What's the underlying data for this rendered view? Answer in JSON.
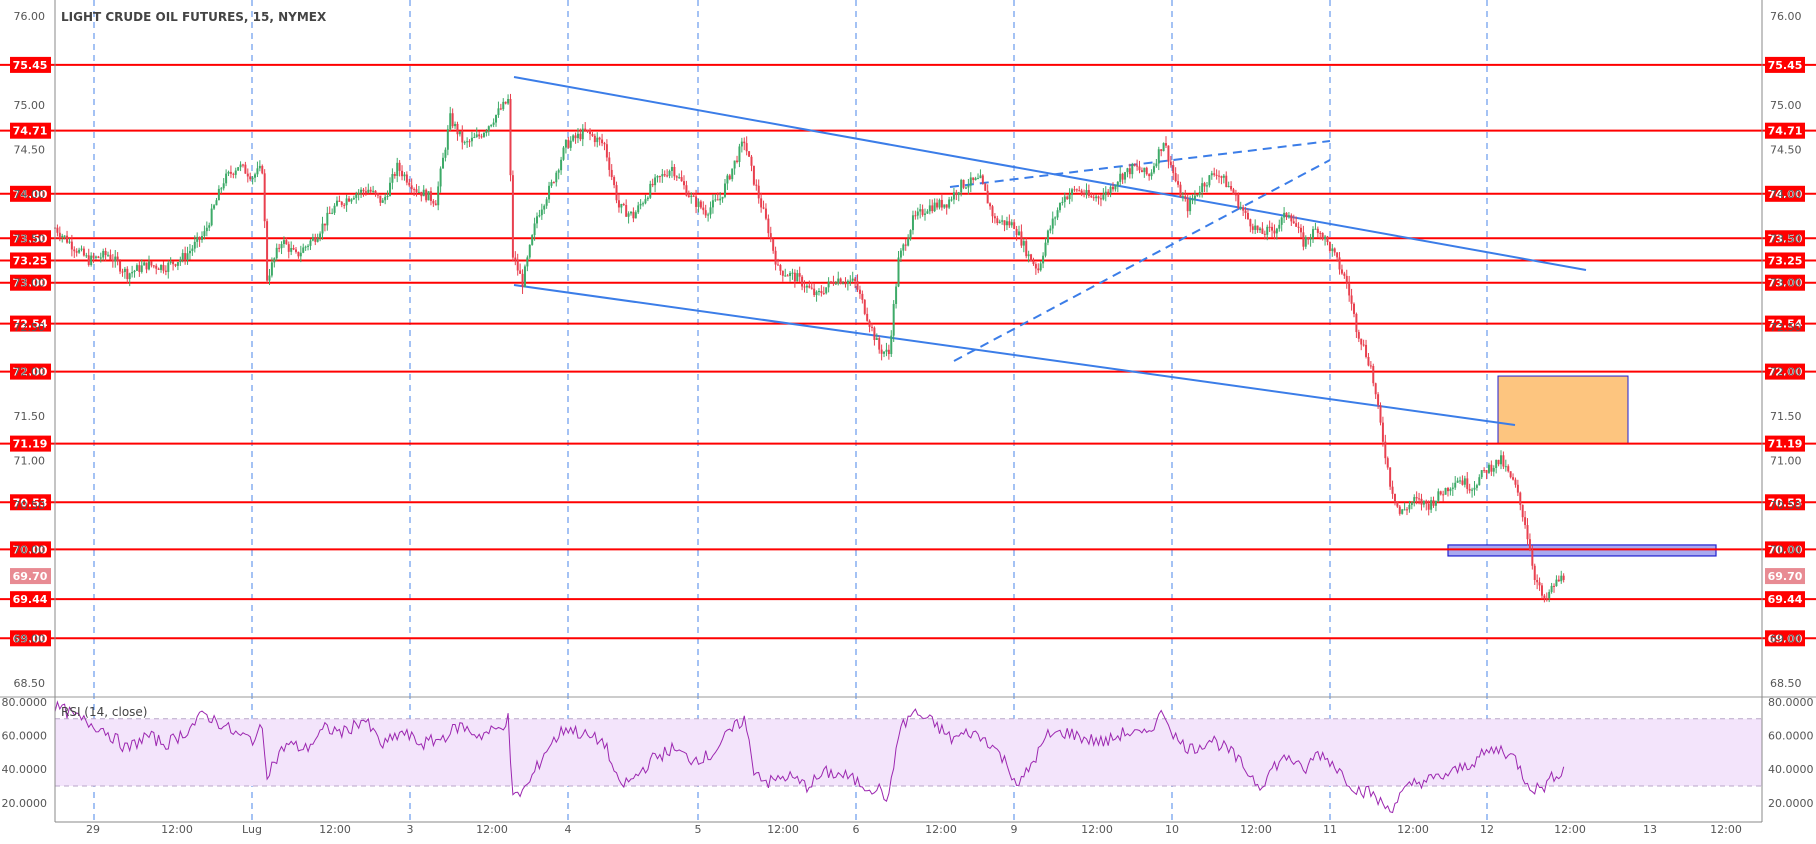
{
  "title": "LIGHT CRUDE OIL FUTURES, 15, NYMEX",
  "colors": {
    "level_line": "#ff0000",
    "level_badge": "#ff0000",
    "up_candle": "#3daa68",
    "down_candle": "#e8404f",
    "trendline": "#3b7de8",
    "session_line": "#4a86e8",
    "supply_zone": "#fdc57f",
    "demand_zone": "#a9aaf0",
    "zone_border": "#1f1fd0",
    "rsi_line": "#9c27b0",
    "rsi_band": "#f3e4fb"
  },
  "chart_data": [
    {
      "type": "candlestick",
      "title": "LIGHT CRUDE OIL FUTURES, 15, NYMEX",
      "ylim": [
        68.5,
        76.0
      ],
      "y_ticks": [
        "76.00",
        "75.00",
        "74.50",
        "74.00",
        "73.50",
        "73.00",
        "72.50",
        "72.00",
        "71.50",
        "71.00",
        "70.50",
        "70.00",
        "69.00",
        "68.50"
      ],
      "x_ticks": [
        "29",
        "12:00",
        "Lug",
        "12:00",
        "3",
        "12:00",
        "4",
        "5",
        "12:00",
        "6",
        "12:00",
        "9",
        "12:00",
        "10",
        "12:00",
        "11",
        "12:00",
        "12",
        "12:00",
        "13",
        "12:00"
      ],
      "level_lines": [
        "75.45",
        "74.71",
        "74.00",
        "73.50",
        "73.25",
        "73.00",
        "72.54",
        "72.00",
        "71.19",
        "70.53",
        "70.00",
        "69.44",
        "69.00"
      ],
      "last_price": "69.70",
      "price_path": [
        [
          0,
          73.62
        ],
        [
          8,
          73.4
        ],
        [
          14,
          73.25
        ],
        [
          22,
          73.32
        ],
        [
          30,
          73.1
        ],
        [
          38,
          73.2
        ],
        [
          46,
          73.18
        ],
        [
          54,
          73.3
        ],
        [
          62,
          73.55
        ],
        [
          70,
          74.15
        ],
        [
          76,
          74.32
        ],
        [
          82,
          74.2
        ],
        [
          86,
          74.28
        ],
        [
          88,
          73.05
        ],
        [
          94,
          73.48
        ],
        [
          100,
          73.3
        ],
        [
          108,
          73.52
        ],
        [
          116,
          73.85
        ],
        [
          124,
          74.0
        ],
        [
          130,
          74.05
        ],
        [
          136,
          73.9
        ],
        [
          142,
          74.3
        ],
        [
          150,
          74.05
        ],
        [
          158,
          73.92
        ],
        [
          164,
          74.85
        ],
        [
          170,
          74.55
        ],
        [
          176,
          74.65
        ],
        [
          180,
          74.78
        ],
        [
          184,
          74.92
        ],
        [
          188,
          75.05
        ],
        [
          190,
          73.3
        ],
        [
          194,
          73.0
        ],
        [
          200,
          73.75
        ],
        [
          206,
          74.1
        ],
        [
          212,
          74.55
        ],
        [
          220,
          74.7
        ],
        [
          228,
          74.55
        ],
        [
          234,
          73.85
        ],
        [
          240,
          73.75
        ],
        [
          248,
          74.1
        ],
        [
          256,
          74.3
        ],
        [
          264,
          73.95
        ],
        [
          270,
          73.8
        ],
        [
          276,
          73.95
        ],
        [
          282,
          74.35
        ],
        [
          286,
          74.6
        ],
        [
          290,
          74.15
        ],
        [
          296,
          73.6
        ],
        [
          300,
          73.15
        ],
        [
          308,
          73.05
        ],
        [
          316,
          72.85
        ],
        [
          324,
          73.05
        ],
        [
          332,
          73.0
        ],
        [
          338,
          72.55
        ],
        [
          342,
          72.25
        ],
        [
          346,
          72.2
        ],
        [
          350,
          73.25
        ],
        [
          356,
          73.7
        ],
        [
          362,
          73.85
        ],
        [
          370,
          73.9
        ],
        [
          376,
          74.1
        ],
        [
          384,
          74.15
        ],
        [
          390,
          73.7
        ],
        [
          398,
          73.65
        ],
        [
          404,
          73.3
        ],
        [
          408,
          73.15
        ],
        [
          412,
          73.55
        ],
        [
          418,
          73.95
        ],
        [
          424,
          74.05
        ],
        [
          430,
          73.95
        ],
        [
          436,
          74.0
        ],
        [
          442,
          74.2
        ],
        [
          448,
          74.3
        ],
        [
          454,
          74.2
        ],
        [
          460,
          74.6
        ],
        [
          466,
          74.05
        ],
        [
          470,
          73.85
        ],
        [
          476,
          74.1
        ],
        [
          482,
          74.25
        ],
        [
          488,
          74.05
        ],
        [
          494,
          73.75
        ],
        [
          500,
          73.55
        ],
        [
          506,
          73.6
        ],
        [
          512,
          73.8
        ],
        [
          518,
          73.45
        ],
        [
          524,
          73.62
        ],
        [
          530,
          73.35
        ],
        [
          536,
          73.0
        ],
        [
          540,
          72.5
        ],
        [
          546,
          72.05
        ],
        [
          550,
          71.4
        ],
        [
          554,
          70.75
        ],
        [
          558,
          70.4
        ],
        [
          564,
          70.55
        ],
        [
          570,
          70.5
        ],
        [
          576,
          70.65
        ],
        [
          582,
          70.8
        ],
        [
          588,
          70.7
        ],
        [
          594,
          70.9
        ],
        [
          600,
          71.0
        ],
        [
          606,
          70.7
        ],
        [
          610,
          70.3
        ],
        [
          614,
          69.7
        ],
        [
          618,
          69.4
        ],
        [
          622,
          69.6
        ],
        [
          626,
          69.7
        ]
      ],
      "trendlines": [
        {
          "from": [
            "02 19:00",
            75.3
          ],
          "to": [
            "11 21:00",
            73.2
          ],
          "style": "solid"
        },
        {
          "from": [
            "02 19:00",
            73.0
          ],
          "to": [
            "12 03:00",
            71.4
          ],
          "style": "solid"
        },
        {
          "from": [
            "09 00:00",
            74.1
          ],
          "to": [
            "11 00:00",
            74.6
          ],
          "style": "dashed"
        },
        {
          "from": [
            "09 00:00",
            72.15
          ],
          "to": [
            "11 00:00",
            74.45
          ],
          "style": "dashed"
        }
      ],
      "zones": [
        {
          "name": "supply",
          "y_top": 71.95,
          "y_bottom": 71.19
        },
        {
          "name": "demand",
          "y_top": 70.05,
          "y_bottom": 69.92
        }
      ]
    },
    {
      "type": "line",
      "title": "RSI (14, close)",
      "ylim": [
        10,
        80
      ],
      "band": [
        30,
        70
      ],
      "y_ticks": [
        "80.0000",
        "60.0000",
        "40.0000",
        "20.0000"
      ],
      "rsi_path": [
        [
          0,
          78
        ],
        [
          10,
          70
        ],
        [
          20,
          64
        ],
        [
          30,
          52
        ],
        [
          38,
          60
        ],
        [
          46,
          55
        ],
        [
          54,
          62
        ],
        [
          62,
          73
        ],
        [
          70,
          66
        ],
        [
          76,
          60
        ],
        [
          82,
          58
        ],
        [
          86,
          64
        ],
        [
          88,
          38
        ],
        [
          96,
          55
        ],
        [
          104,
          52
        ],
        [
          112,
          64
        ],
        [
          120,
          62
        ],
        [
          128,
          70
        ],
        [
          136,
          54
        ],
        [
          144,
          62
        ],
        [
          152,
          55
        ],
        [
          160,
          58
        ],
        [
          168,
          66
        ],
        [
          176,
          60
        ],
        [
          184,
          64
        ],
        [
          188,
          70
        ],
        [
          190,
          22
        ],
        [
          196,
          30
        ],
        [
          204,
          52
        ],
        [
          212,
          65
        ],
        [
          220,
          60
        ],
        [
          228,
          56
        ],
        [
          234,
          30
        ],
        [
          240,
          34
        ],
        [
          248,
          46
        ],
        [
          256,
          52
        ],
        [
          264,
          46
        ],
        [
          272,
          48
        ],
        [
          280,
          62
        ],
        [
          286,
          70
        ],
        [
          290,
          40
        ],
        [
          296,
          32
        ],
        [
          304,
          36
        ],
        [
          312,
          30
        ],
        [
          320,
          38
        ],
        [
          328,
          36
        ],
        [
          336,
          30
        ],
        [
          342,
          28
        ],
        [
          346,
          22
        ],
        [
          350,
          62
        ],
        [
          356,
          74
        ],
        [
          364,
          68
        ],
        [
          372,
          58
        ],
        [
          380,
          62
        ],
        [
          388,
          56
        ],
        [
          394,
          45
        ],
        [
          400,
          30
        ],
        [
          406,
          45
        ],
        [
          412,
          60
        ],
        [
          420,
          62
        ],
        [
          428,
          58
        ],
        [
          436,
          56
        ],
        [
          444,
          62
        ],
        [
          452,
          60
        ],
        [
          460,
          74
        ],
        [
          466,
          56
        ],
        [
          472,
          52
        ],
        [
          480,
          58
        ],
        [
          488,
          50
        ],
        [
          494,
          40
        ],
        [
          500,
          30
        ],
        [
          506,
          42
        ],
        [
          512,
          48
        ],
        [
          518,
          38
        ],
        [
          524,
          50
        ],
        [
          530,
          44
        ],
        [
          536,
          34
        ],
        [
          540,
          28
        ],
        [
          546,
          26
        ],
        [
          550,
          20
        ],
        [
          554,
          16
        ],
        [
          558,
          24
        ],
        [
          564,
          32
        ],
        [
          572,
          34
        ],
        [
          580,
          38
        ],
        [
          588,
          44
        ],
        [
          594,
          50
        ],
        [
          600,
          52
        ],
        [
          606,
          46
        ],
        [
          610,
          34
        ],
        [
          614,
          28
        ],
        [
          618,
          30
        ],
        [
          622,
          36
        ],
        [
          626,
          40
        ]
      ]
    }
  ]
}
